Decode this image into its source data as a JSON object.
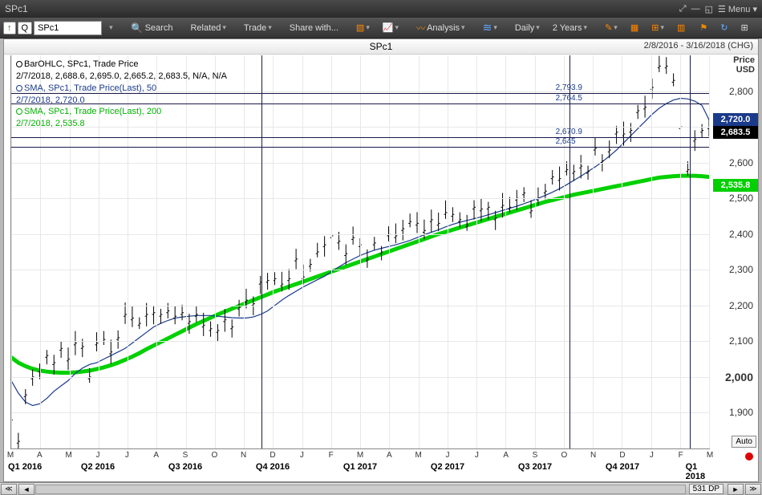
{
  "window": {
    "title": "SPc1",
    "menu_label": "Menu"
  },
  "toolbar": {
    "direction": "↑",
    "mode": "Q",
    "symbol_value": "SPc1",
    "search": "Search",
    "related": "Related",
    "trade": "Trade",
    "share": "Share with...",
    "analysis": "Analysis",
    "period": "Daily",
    "range": "2 Years"
  },
  "chart": {
    "title": "SPc1",
    "date_range": "2/8/2016 - 3/16/2018 (CHG)",
    "y_title1": "Price",
    "y_title2": "USD",
    "y_min": 1800,
    "y_max": 2900,
    "y_ticks": [
      1900,
      2000,
      2100,
      2200,
      2300,
      2400,
      2500,
      2600,
      2700,
      2800
    ],
    "bold_tick": 2000,
    "price_marker_blue": "2,720.0",
    "price_marker_black": "2,683.5",
    "price_marker_green": "2,535.8",
    "marker_blue_val": 2720.0,
    "marker_black_val": 2683.5,
    "marker_green_val": 2535.8,
    "auto_label": "Auto",
    "x_months": [
      "M",
      "A",
      "M",
      "J",
      "J",
      "A",
      "S",
      "O",
      "N",
      "D",
      "J",
      "F",
      "M",
      "A",
      "M",
      "J",
      "J",
      "A",
      "S",
      "O",
      "N",
      "D",
      "J",
      "F",
      "M"
    ],
    "x_quarters": [
      {
        "label": "Q1 2016",
        "at": 0.5
      },
      {
        "label": "Q2 2016",
        "at": 3
      },
      {
        "label": "Q3 2016",
        "at": 6
      },
      {
        "label": "Q4 2016",
        "at": 9
      },
      {
        "label": "Q1 2017",
        "at": 12
      },
      {
        "label": "Q2 2017",
        "at": 15
      },
      {
        "label": "Q3 2017",
        "at": 18
      },
      {
        "label": "Q4 2017",
        "at": 21
      },
      {
        "label": "Q1 2018",
        "at": 23.5
      }
    ],
    "crosshair_v": [
      8.6,
      19.2,
      23.35
    ],
    "hlines": [
      {
        "label": "2,793.9",
        "val": 2793.9
      },
      {
        "label": "2,764.5",
        "val": 2764.5
      },
      {
        "label": "2,670.9",
        "val": 2670.9
      },
      {
        "label": "2,645",
        "val": 2645
      }
    ],
    "series_price": [
      1880,
      1820,
      1950,
      2000,
      2020,
      2060,
      2040,
      2080,
      2050,
      2095,
      2085,
      2000,
      2095,
      2105,
      2070,
      2110,
      2175,
      2165,
      2150,
      2175,
      2180,
      2175,
      2185,
      2170,
      2180,
      2155,
      2175,
      2145,
      2135,
      2130,
      2160,
      2140,
      2195,
      2215,
      2205,
      2265,
      2270,
      2275,
      2260,
      2275,
      2330,
      2280,
      2315,
      2350,
      2370,
      2395,
      2380,
      2345,
      2390,
      2370,
      2330,
      2375,
      2350,
      2400,
      2395,
      2415,
      2435,
      2430,
      2410,
      2440,
      2430,
      2460,
      2455,
      2440,
      2425,
      2475,
      2470,
      2475,
      2445,
      2480,
      2475,
      2500,
      2515,
      2465,
      2500,
      2520,
      2560,
      2555,
      2580,
      2575,
      2590,
      2575,
      2640,
      2605,
      2635,
      2685,
      2680,
      2690,
      2745,
      2755,
      2810,
      2870,
      2870,
      2830,
      2700,
      2580,
      2665,
      2690,
      2700
    ],
    "series_sma50": [
      1990,
      1955,
      1930,
      1920,
      1925,
      1940,
      1960,
      1975,
      1990,
      2010,
      2025,
      2035,
      2040,
      2050,
      2060,
      2070,
      2080,
      2095,
      2110,
      2125,
      2140,
      2150,
      2158,
      2165,
      2168,
      2170,
      2172,
      2172,
      2172,
      2170,
      2168,
      2166,
      2165,
      2165,
      2168,
      2175,
      2185,
      2200,
      2215,
      2228,
      2240,
      2252,
      2262,
      2272,
      2282,
      2295,
      2308,
      2320,
      2330,
      2340,
      2348,
      2355,
      2360,
      2365,
      2370,
      2376,
      2382,
      2390,
      2398,
      2405,
      2412,
      2420,
      2427,
      2433,
      2438,
      2443,
      2448,
      2454,
      2460,
      2466,
      2472,
      2478,
      2485,
      2492,
      2500,
      2508,
      2517,
      2527,
      2538,
      2550,
      2562,
      2575,
      2588,
      2602,
      2618,
      2635,
      2655,
      2675,
      2695,
      2715,
      2735,
      2752,
      2765,
      2775,
      2780,
      2778,
      2772,
      2760,
      2720
    ],
    "series_sma200": [
      2055,
      2040,
      2030,
      2023,
      2018,
      2015,
      2013,
      2012,
      2012,
      2013,
      2015,
      2018,
      2022,
      2027,
      2033,
      2040,
      2048,
      2057,
      2067,
      2078,
      2088,
      2098,
      2108,
      2118,
      2128,
      2138,
      2148,
      2157,
      2166,
      2175,
      2183,
      2191,
      2199,
      2207,
      2215,
      2223,
      2231,
      2239,
      2246,
      2253,
      2260,
      2267,
      2274,
      2281,
      2288,
      2295,
      2302,
      2309,
      2316,
      2323,
      2330,
      2337,
      2344,
      2351,
      2358,
      2365,
      2372,
      2379,
      2386,
      2393,
      2400,
      2406,
      2412,
      2418,
      2424,
      2430,
      2436,
      2442,
      2448,
      2454,
      2460,
      2466,
      2472,
      2478,
      2484,
      2490,
      2495,
      2500,
      2505,
      2510,
      2514,
      2518,
      2522,
      2526,
      2530,
      2534,
      2538,
      2542,
      2546,
      2550,
      2554,
      2558,
      2560,
      2562,
      2563,
      2563,
      2563,
      2562,
      2560
    ],
    "colors": {
      "price_line": "#000000",
      "sma50_line": "#1a3a8a",
      "sma200_line": "#00d000",
      "sma200_width": 5,
      "grid": "#e8e8e8",
      "crosshair": "#1a1a4a"
    }
  },
  "legend": {
    "l1a": "BarOHLC, SPc1, Trade Price",
    "l1b": "2/7/2018, 2,688.6, 2,695.0, 2,665.2, 2,683.5, N/A, N/A",
    "l2a": "SMA, SPc1, Trade Price(Last),  50",
    "l2b": "2/7/2018, 2,720.0",
    "l3a": "SMA, SPc1, Trade Price(Last),  200",
    "l3b": "2/7/2018, 2,535.8"
  },
  "footer": {
    "dp": "531 DP"
  }
}
